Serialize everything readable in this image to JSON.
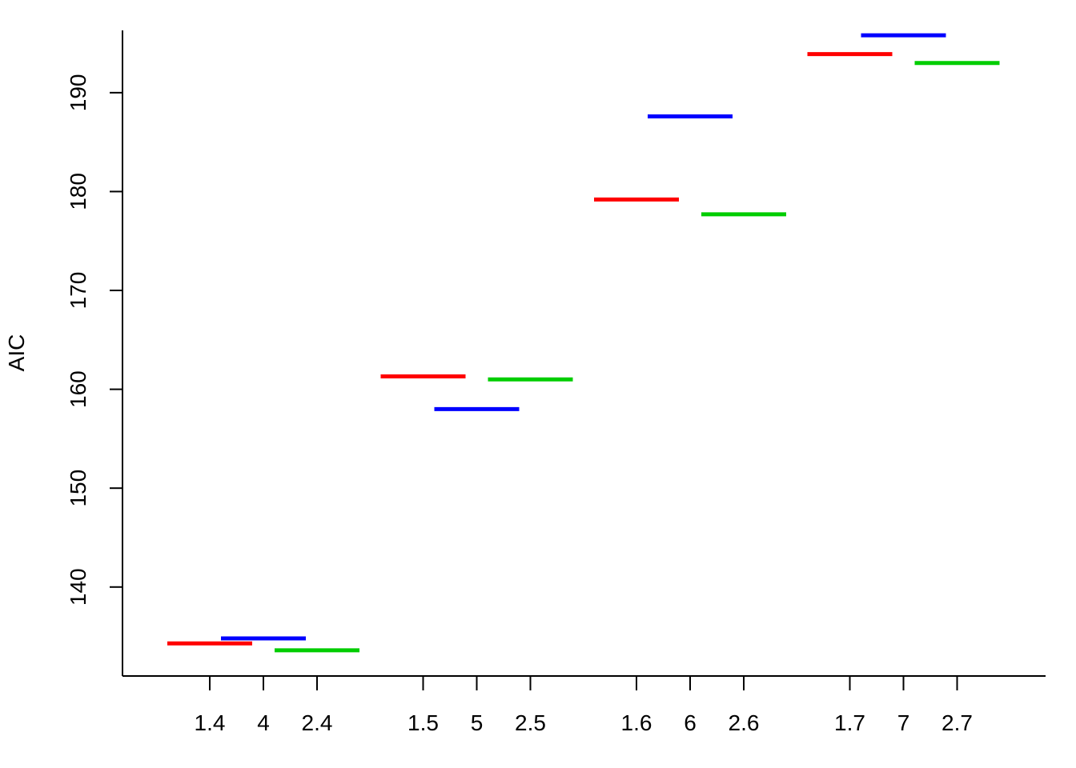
{
  "chart_data": {
    "type": "scatter",
    "title": "",
    "xlabel": "",
    "ylabel": "AIC",
    "ylim": [
      131,
      196.3
    ],
    "grid": false,
    "legend": "none",
    "y_ticks": [
      140,
      150,
      160,
      170,
      180,
      190
    ],
    "x_ticks": [
      "1.4",
      "4",
      "2.4",
      "1.5",
      "5",
      "2.5",
      "1.6",
      "6",
      "2.6",
      "1.7",
      "7",
      "2.7"
    ],
    "series": [
      {
        "color": "#ff0000",
        "points": [
          {
            "group": 0,
            "value": 134.3
          },
          {
            "group": 1,
            "value": 161.3
          },
          {
            "group": 2,
            "value": 179.2
          },
          {
            "group": 3,
            "value": 193.9
          }
        ]
      },
      {
        "color": "#0000ff",
        "points": [
          {
            "group": 0,
            "value": 134.8
          },
          {
            "group": 1,
            "value": 158.0
          },
          {
            "group": 2,
            "value": 187.6
          },
          {
            "group": 3,
            "value": 195.8
          }
        ]
      },
      {
        "color": "#00cd00",
        "points": [
          {
            "group": 0,
            "value": 133.6
          },
          {
            "group": 1,
            "value": 161.0
          },
          {
            "group": 2,
            "value": 177.7
          },
          {
            "group": 3,
            "value": 193.0
          }
        ]
      }
    ]
  }
}
